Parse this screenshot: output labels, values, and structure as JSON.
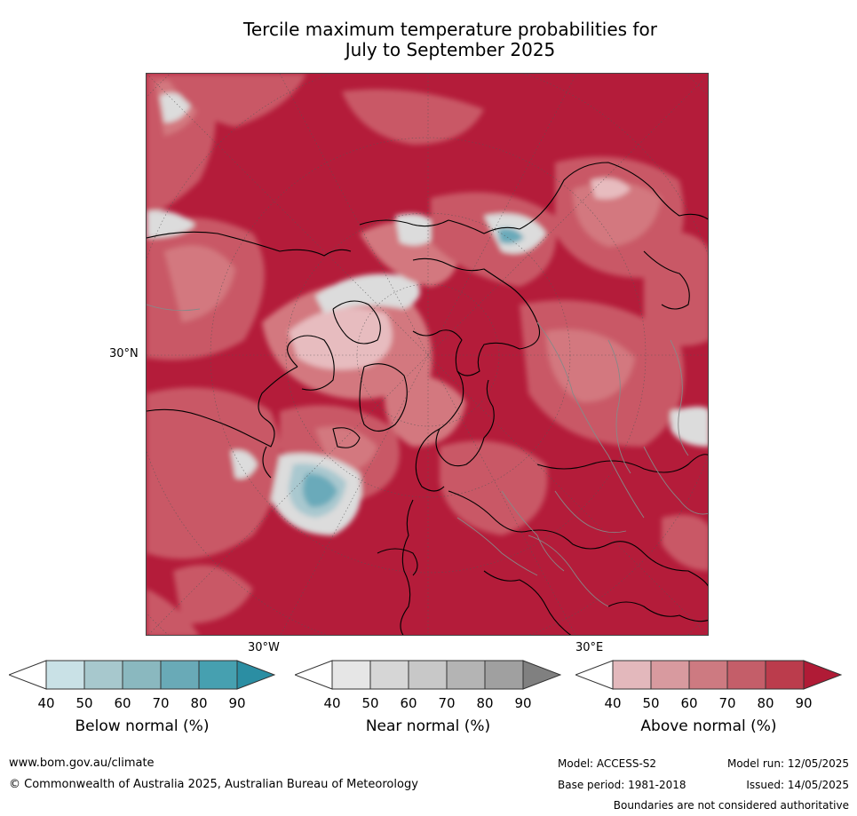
{
  "title": {
    "line1": "Tercile maximum temperature probabilities for",
    "line2": "July to September 2025"
  },
  "map": {
    "labels": {
      "lat_30n": "30°N",
      "lon_30w": "30°W",
      "lon_30e": "30°E"
    },
    "palette": {
      "above_90": "#b41c3a",
      "above_80": "#c0394f",
      "above_70": "#c95966",
      "above_60": "#d3787f",
      "above_50": "#dc9ea3",
      "above_40": "#e7bcbf",
      "near": "#dcdcdc",
      "below_50": "#a9c8cf",
      "below_70": "#6aaaba",
      "below_90": "#2f8fa6",
      "coast": "#000000",
      "border": "#888888",
      "grid": "#555555"
    }
  },
  "colorbars": [
    {
      "caption": "Below normal (%)",
      "ticks": [
        "40",
        "50",
        "60",
        "70",
        "80",
        "90"
      ],
      "colors": [
        "#ffffff",
        "#c9e1e6",
        "#a7c8cd",
        "#8ab8bf",
        "#69aab7",
        "#46a0b0",
        "#2b8ea3"
      ]
    },
    {
      "caption": "Near normal (%)",
      "ticks": [
        "40",
        "50",
        "60",
        "70",
        "80",
        "90"
      ],
      "colors": [
        "#ffffff",
        "#e6e6e6",
        "#d6d6d6",
        "#c8c8c8",
        "#b4b4b4",
        "#a0a0a0",
        "#808080"
      ]
    },
    {
      "caption": "Above normal (%)",
      "ticks": [
        "40",
        "50",
        "60",
        "70",
        "80",
        "90"
      ],
      "colors": [
        "#ffffff",
        "#e3b8bc",
        "#d89a9f",
        "#cd7a81",
        "#c45e69",
        "#bb3c4c",
        "#b01b36"
      ]
    }
  ],
  "footer": {
    "url": "www.bom.gov.au/climate",
    "copyright": "© Commonwealth of Australia 2025, Australian Bureau of Meteorology",
    "model": "Model: ACCESS-S2",
    "model_run": "Model run: 12/05/2025",
    "base_period": "Base period: 1981-2018",
    "issued": "Issued: 14/05/2025",
    "disclaimer": "Boundaries are not considered authoritative"
  }
}
